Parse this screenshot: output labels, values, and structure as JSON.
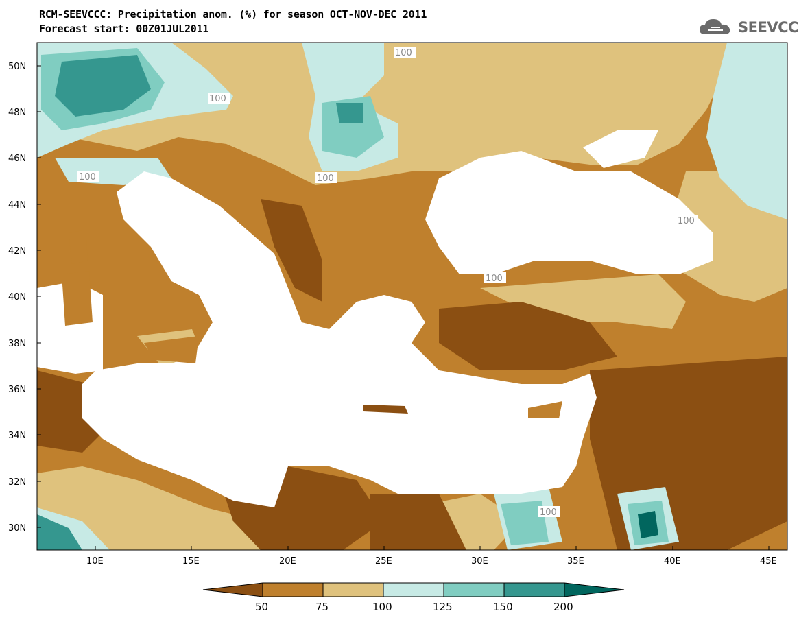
{
  "header": {
    "title_line1": "RCM-SEEVCCC: Precipitation anom. (%) for season OCT-NOV-DEC 2011",
    "title_line2": "Forecast start: 00Z01JUL2011"
  },
  "logo": {
    "text": "SEEVCCC",
    "icon": "cloud-icon"
  },
  "map": {
    "lon_range": [
      7,
      46
    ],
    "lat_range": [
      29,
      51
    ],
    "x_ticks": [
      "10E",
      "15E",
      "20E",
      "25E",
      "30E",
      "35E",
      "40E",
      "45E"
    ],
    "y_ticks": [
      "50N",
      "48N",
      "46N",
      "44N",
      "42N",
      "40N",
      "38N",
      "36N",
      "34N",
      "32N",
      "30N"
    ],
    "contour_label": "100",
    "colors": {
      "below_50": "#8b4f12",
      "50_75": "#bf802d",
      "75_100": "#dfc27d",
      "100_125": "#c7eae5",
      "125_150": "#80cdc1",
      "150_200": "#35978f",
      "above_200": "#01665e",
      "sea": "#ffffff"
    }
  },
  "colorbar": {
    "labels": [
      "50",
      "75",
      "100",
      "125",
      "150",
      "200"
    ],
    "colors": [
      "#8b4f12",
      "#bf802d",
      "#dfc27d",
      "#c7eae5",
      "#80cdc1",
      "#35978f",
      "#01665e"
    ]
  }
}
